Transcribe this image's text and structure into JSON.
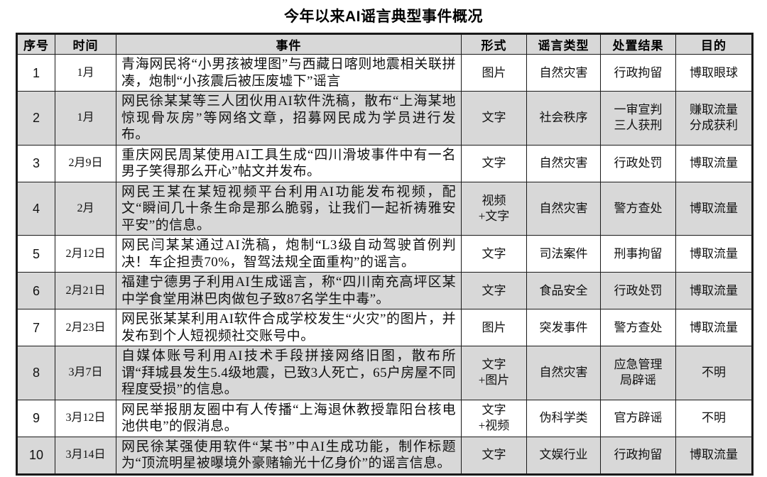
{
  "title": "今年以来AI谣言典型事件概况",
  "colors": {
    "row_shade": "#d8d8d8",
    "border": "#1a1a1a",
    "text": "#111111",
    "background": "#ffffff"
  },
  "table": {
    "headers": [
      "序号",
      "时间",
      "事件",
      "形式",
      "谣言类型",
      "处置结果",
      "目的"
    ],
    "rows": [
      {
        "no": "1",
        "time": "1月",
        "event": "青海网民将“小男孩被埋图”与西藏日喀则地震相关联拼凑，炮制“小孩震后被压废墟下”谣言",
        "form": "图片",
        "type": "自然灾害",
        "result": "行政拘留",
        "purpose": "博取眼球"
      },
      {
        "no": "2",
        "time": "1月",
        "event": "网民徐某某等三人团伙用AI软件洗稿，散布“上海某地惊现骨灰房”等网络文章，招募网民成为学员进行发布。",
        "form": "文字",
        "type": "社会秩序",
        "result": "一审宣判\n三人获刑",
        "purpose": "赚取流量\n分成获利"
      },
      {
        "no": "3",
        "time": "2月9日",
        "event": "重庆网民周某使用AI工具生成“四川滑坡事件中有一名男子笑得那么开心”帖文并发布。",
        "form": "文字",
        "type": "自然灾害",
        "result": "行政处罚",
        "purpose": "博取流量"
      },
      {
        "no": "4",
        "time": "2月",
        "event": "网民王某在某短视频平台利用AI功能发布视频，配文“瞬间几十条生命是那么脆弱，让我们一起祈祷雅安平安”的信息。",
        "form": "视频\n+文字",
        "type": "自然灾害",
        "result": "警方查处",
        "purpose": "博取流量"
      },
      {
        "no": "5",
        "time": "2月12日",
        "event": "网民闫某某通过AI洗稿，炮制“L3级自动驾驶首例判决！车企担责70%，智驾法规全面重构”的谣言。",
        "form": "文字",
        "type": "司法案件",
        "result": "刑事拘留",
        "purpose": "博取流量"
      },
      {
        "no": "6",
        "time": "2月21日",
        "event": "福建宁德男子利用AI生成谣言，称“四川南充高坪区某中学食堂用淋巴肉做包子致87名学生中毒”。",
        "form": "文字",
        "type": "食品安全",
        "result": "行政处罚",
        "purpose": "博取流量"
      },
      {
        "no": "7",
        "time": "2月23日",
        "event": "网民张某某利用AI软件合成学校发生“火灾”的图片，并发布到个人短视频社交账号中。",
        "form": "图片",
        "type": "突发事件",
        "result": "警方查处",
        "purpose": "博取流量"
      },
      {
        "no": "8",
        "time": "3月7日",
        "event": "自媒体账号利用AI技术手段拼接网络旧图，散布所谓“拜城县发生5.4级地震，已致3人死亡，65户房屋不同程度受损”的信息。",
        "form": "文字\n+图片",
        "type": "自然灾害",
        "result": "应急管理\n局辟谣",
        "purpose": "不明"
      },
      {
        "no": "9",
        "time": "3月12日",
        "event": "网民举报朋友圈中有人传播“上海退休教授靠阳台核电池供电”的假消息。",
        "form": "文字\n+视频",
        "type": "伪科学类",
        "result": "官方辟谣",
        "purpose": "不明"
      },
      {
        "no": "10",
        "time": "3月14日",
        "event": "网民徐某强使用软件“某书”中AI生成功能，制作标题为“顶流明星被曝境外豪赌输光十亿身价”的谣言信息。",
        "form": "文字",
        "type": "文娱行业",
        "result": "行政拘留",
        "purpose": "博取流量"
      }
    ]
  }
}
